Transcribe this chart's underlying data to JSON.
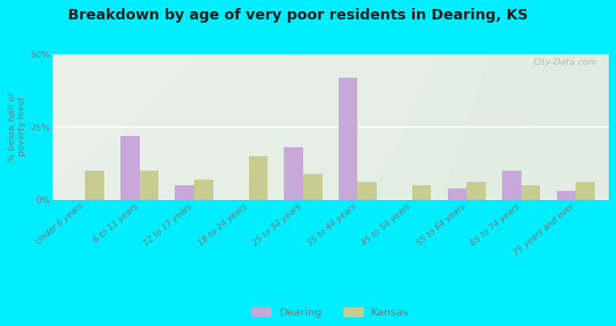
{
  "title": "Breakdown by age of very poor residents in Dearing, KS",
  "categories": [
    "Under 6 years",
    "6 to 11 years",
    "12 to 17 years",
    "18 to 24 years",
    "25 to 34 years",
    "35 to 44 years",
    "45 to 54 years",
    "55 to 64 years",
    "65 to 74 years",
    "75 years and over"
  ],
  "dearing_values": [
    0,
    22,
    5,
    0,
    18,
    42,
    0,
    4,
    10,
    3
  ],
  "kansas_values": [
    10,
    10,
    7,
    15,
    9,
    6,
    5,
    6,
    5,
    6
  ],
  "dearing_color": "#c8a8d8",
  "kansas_color": "#c8cc90",
  "background_color": "#00eeff",
  "plot_bg": "#e8f0e0",
  "ylabel": "% below half of\npoverty level",
  "ylim": [
    0,
    50
  ],
  "yticks": [
    0,
    25,
    50
  ],
  "ytick_labels": [
    "0%",
    "25%",
    "50%"
  ],
  "bar_width": 0.35,
  "title_fontsize": 13,
  "watermark": "City-Data.com",
  "tick_color": "#777777",
  "label_color": "#777777"
}
